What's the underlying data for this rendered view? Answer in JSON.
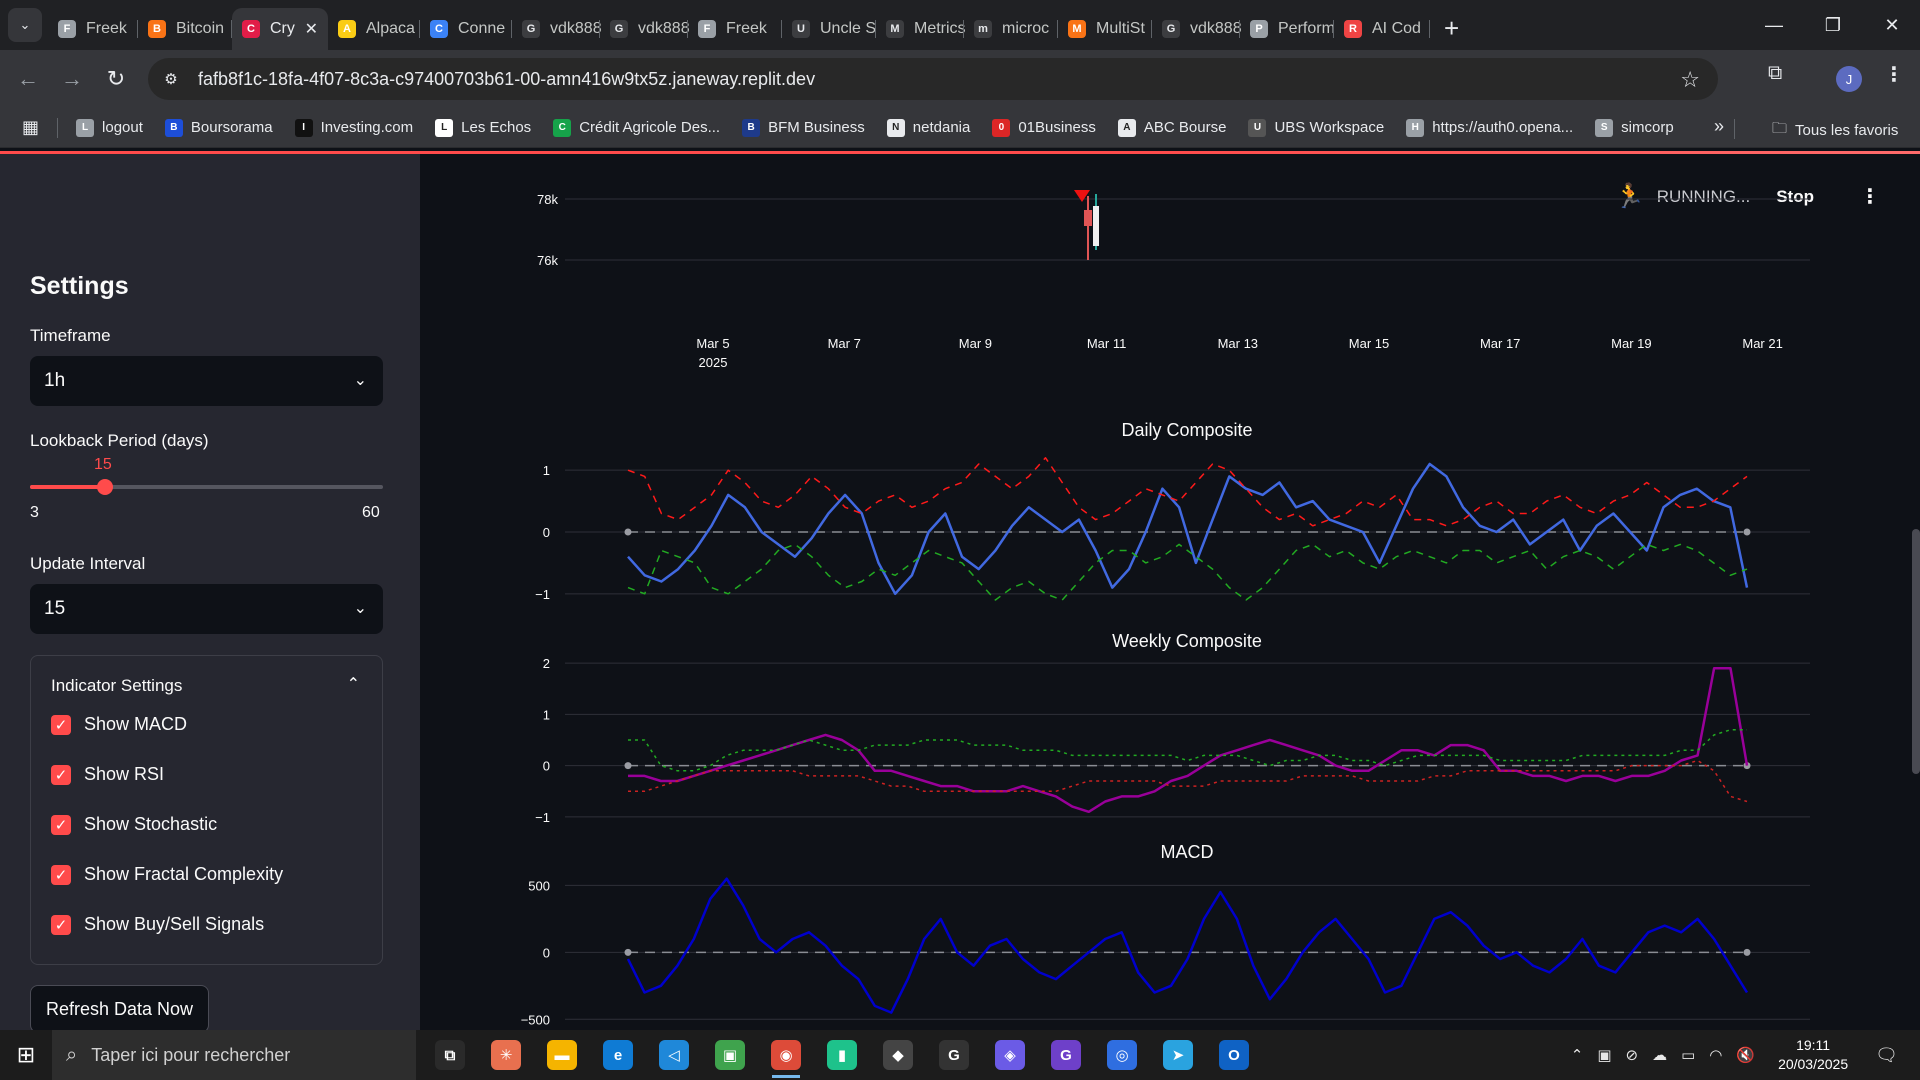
{
  "browser": {
    "tabs": [
      {
        "label": "Freek",
        "icon": "#9aa0a6",
        "glyph": "F"
      },
      {
        "label": "Bitcoin",
        "icon": "#f97316",
        "glyph": "B"
      },
      {
        "label": "Cry",
        "icon": "#e11d48",
        "glyph": "C",
        "active": true
      },
      {
        "label": "Alpaca",
        "icon": "#facc15",
        "glyph": "A"
      },
      {
        "label": "Conne",
        "icon": "#3b82f6",
        "glyph": "C"
      },
      {
        "label": "vdk888",
        "icon": "#e8eaed",
        "glyph": "G"
      },
      {
        "label": "vdk888",
        "icon": "#e8eaed",
        "glyph": "G"
      },
      {
        "label": "Freek",
        "icon": "#9aa0a6",
        "glyph": "F"
      },
      {
        "label": "Uncle S",
        "icon": "#e8eaed",
        "glyph": "U"
      },
      {
        "label": "Metrics",
        "icon": "#e8eaed",
        "glyph": "M"
      },
      {
        "label": "microc",
        "icon": "#e8eaed",
        "glyph": "m"
      },
      {
        "label": "MultiSt",
        "icon": "#f97316",
        "glyph": "M"
      },
      {
        "label": "vdk888",
        "icon": "#e8eaed",
        "glyph": "G"
      },
      {
        "label": "Perform",
        "icon": "#9aa0a6",
        "glyph": "P"
      },
      {
        "label": "AI Cod",
        "icon": "#ef4444",
        "glyph": "R"
      }
    ],
    "url": "fafb8f1c-18fa-4f07-8c3a-c97400703b61-00-amn416w9tx5z.janeway.replit.dev",
    "profile_initial": "J",
    "bookmarks": [
      {
        "label": "logout",
        "color": "#9aa0a6"
      },
      {
        "label": "Boursorama",
        "color": "#1d4ed8"
      },
      {
        "label": "Investing.com",
        "color": "#111111"
      },
      {
        "label": "Les Echos",
        "color": "#ffffff"
      },
      {
        "label": "Crédit Agricole Des...",
        "color": "#16a34a"
      },
      {
        "label": "BFM Business",
        "color": "#1e3a8a"
      },
      {
        "label": "netdania",
        "color": "#e8eaed"
      },
      {
        "label": "01Business",
        "color": "#dc2626"
      },
      {
        "label": "ABC Bourse",
        "color": "#e8eaed"
      },
      {
        "label": "UBS Workspace",
        "color": "#555555"
      },
      {
        "label": "https://auth0.opena...",
        "color": "#9aa0a6"
      },
      {
        "label": "simcorp",
        "color": "#9aa0a6"
      }
    ],
    "all_bookmarks": "Tous les favoris"
  },
  "sidebar": {
    "title": "Settings",
    "timeframe_label": "Timeframe",
    "timeframe_value": "1h",
    "lookback_label": "Lookback Period (days)",
    "lookback_value": "15",
    "lookback_min": "3",
    "lookback_max": "60",
    "interval_label": "Update Interval",
    "interval_value": "15",
    "indicator_title": "Indicator Settings",
    "checkboxes": [
      {
        "label": "Show MACD"
      },
      {
        "label": "Show RSI"
      },
      {
        "label": "Show Stochastic"
      },
      {
        "label": "Show Fractal Complexity"
      },
      {
        "label": "Show Buy/Sell Signals"
      }
    ],
    "refresh_label": "Refresh Data Now"
  },
  "status": {
    "text": "RUNNING...",
    "stop": "Stop"
  },
  "charts": {
    "price": {
      "y_ticks": [
        "78k",
        "76k"
      ],
      "x_ticks": [
        "Mar 5",
        "Mar 7",
        "Mar 9",
        "Mar 11",
        "Mar 13",
        "Mar 15",
        "Mar 17",
        "Mar 19",
        "Mar 21"
      ],
      "x_year": "2025"
    },
    "daily": {
      "title": "Daily Composite",
      "y_ticks": [
        "1",
        "0",
        "−1"
      ]
    },
    "weekly": {
      "title": "Weekly Composite",
      "y_ticks": [
        "2",
        "1",
        "0",
        "−1"
      ]
    },
    "macd": {
      "title": "MACD",
      "y_ticks": [
        "500",
        "0",
        "−500"
      ]
    }
  },
  "chart_data": [
    {
      "type": "line",
      "title": "Daily Composite",
      "ylim": [
        -1.1,
        1.1
      ],
      "series": [
        {
          "color": "#4169e1",
          "values": [
            -0.4,
            -0.7,
            -0.8,
            -0.6,
            -0.3,
            0.1,
            0.6,
            0.4,
            0.0,
            -0.2,
            -0.4,
            -0.1,
            0.3,
            0.6,
            0.3,
            -0.5,
            -1.0,
            -0.7,
            0.0,
            0.3,
            -0.4,
            -0.6,
            -0.3,
            0.1,
            0.4,
            0.2,
            0.0,
            0.2,
            -0.3,
            -0.9,
            -0.6,
            0.0,
            0.7,
            0.4,
            -0.5,
            0.2,
            0.9,
            0.7,
            0.6,
            0.8,
            0.4,
            0.5,
            0.2,
            0.1,
            0.0,
            -0.5,
            0.1,
            0.7,
            1.1,
            0.9,
            0.4,
            0.1,
            0.0,
            0.2,
            -0.2,
            0.0,
            0.2,
            -0.3,
            0.1,
            0.3,
            0.0,
            -0.3,
            0.4,
            0.6,
            0.7,
            0.5,
            0.4,
            -0.9
          ]
        },
        {
          "color": "#ff1a1a",
          "dash": "7,6",
          "values": [
            1.0,
            0.9,
            0.3,
            0.2,
            0.4,
            0.6,
            1.0,
            0.8,
            0.5,
            0.4,
            0.6,
            0.9,
            0.7,
            0.4,
            0.3,
            0.5,
            0.6,
            0.4,
            0.5,
            0.7,
            0.8,
            1.1,
            0.9,
            0.7,
            0.9,
            1.2,
            0.8,
            0.4,
            0.2,
            0.3,
            0.5,
            0.7,
            0.6,
            0.5,
            0.8,
            1.1,
            1.0,
            0.7,
            0.4,
            0.2,
            0.3,
            0.1,
            0.2,
            0.3,
            0.5,
            0.4,
            0.6,
            0.2,
            0.2,
            0.1,
            0.2,
            0.4,
            0.5,
            0.3,
            0.3,
            0.5,
            0.6,
            0.4,
            0.3,
            0.5,
            0.6,
            0.8,
            0.6,
            0.4,
            0.4,
            0.5,
            0.7,
            0.9
          ]
        },
        {
          "color": "#22aa22",
          "dash": "7,6",
          "values": [
            -0.9,
            -1.0,
            -0.3,
            -0.4,
            -0.5,
            -0.9,
            -1.0,
            -0.8,
            -0.6,
            -0.3,
            -0.2,
            -0.4,
            -0.7,
            -0.9,
            -0.8,
            -0.6,
            -0.7,
            -0.5,
            -0.3,
            -0.4,
            -0.5,
            -0.8,
            -1.1,
            -0.9,
            -0.8,
            -1.0,
            -1.1,
            -0.8,
            -0.5,
            -0.3,
            -0.3,
            -0.5,
            -0.4,
            -0.2,
            -0.4,
            -0.6,
            -0.9,
            -1.1,
            -0.9,
            -0.6,
            -0.3,
            -0.2,
            -0.4,
            -0.3,
            -0.5,
            -0.6,
            -0.4,
            -0.3,
            -0.4,
            -0.5,
            -0.3,
            -0.3,
            -0.5,
            -0.4,
            -0.3,
            -0.6,
            -0.4,
            -0.3,
            -0.4,
            -0.6,
            -0.4,
            -0.2,
            -0.3,
            -0.2,
            -0.3,
            -0.5,
            -0.7,
            -0.6
          ]
        }
      ]
    },
    {
      "type": "line",
      "title": "Weekly Composite",
      "ylim": [
        -1.1,
        2.1
      ],
      "series": [
        {
          "color": "#990099",
          "values": [
            -0.2,
            -0.2,
            -0.3,
            -0.3,
            -0.2,
            -0.1,
            0.0,
            0.1,
            0.2,
            0.3,
            0.4,
            0.5,
            0.6,
            0.5,
            0.3,
            -0.1,
            -0.1,
            -0.2,
            -0.3,
            -0.4,
            -0.4,
            -0.5,
            -0.5,
            -0.5,
            -0.4,
            -0.5,
            -0.6,
            -0.8,
            -0.9,
            -0.7,
            -0.6,
            -0.6,
            -0.5,
            -0.3,
            -0.2,
            0.0,
            0.2,
            0.3,
            0.4,
            0.5,
            0.4,
            0.3,
            0.2,
            0.0,
            -0.1,
            -0.1,
            0.1,
            0.3,
            0.3,
            0.2,
            0.4,
            0.4,
            0.3,
            -0.1,
            -0.1,
            -0.2,
            -0.2,
            -0.3,
            -0.2,
            -0.2,
            -0.3,
            -0.2,
            -0.2,
            -0.1,
            0.1,
            0.2,
            1.9,
            1.9,
            0.0
          ]
        },
        {
          "color": "#22aa22",
          "dash": "3,4",
          "values": [
            0.5,
            0.5,
            0.0,
            -0.1,
            -0.1,
            0.0,
            0.2,
            0.3,
            0.3,
            0.3,
            0.4,
            0.5,
            0.4,
            0.3,
            0.3,
            0.4,
            0.4,
            0.4,
            0.5,
            0.5,
            0.5,
            0.4,
            0.4,
            0.4,
            0.3,
            0.3,
            0.3,
            0.2,
            0.2,
            0.2,
            0.2,
            0.2,
            0.2,
            0.2,
            0.1,
            0.2,
            0.2,
            0.2,
            0.1,
            0.0,
            0.1,
            0.1,
            0.2,
            0.2,
            0.1,
            0.1,
            0.0,
            0.1,
            0.2,
            0.2,
            0.2,
            0.2,
            0.2,
            0.1,
            0.1,
            0.1,
            0.1,
            0.1,
            0.2,
            0.2,
            0.2,
            0.2,
            0.2,
            0.2,
            0.3,
            0.3,
            0.6,
            0.7,
            0.7
          ]
        },
        {
          "color": "#cc2222",
          "dash": "3,4",
          "values": [
            -0.5,
            -0.5,
            -0.4,
            -0.3,
            -0.2,
            -0.1,
            -0.1,
            -0.1,
            -0.1,
            -0.1,
            -0.1,
            -0.2,
            -0.2,
            -0.2,
            -0.2,
            -0.3,
            -0.4,
            -0.4,
            -0.5,
            -0.5,
            -0.5,
            -0.5,
            -0.5,
            -0.5,
            -0.5,
            -0.5,
            -0.5,
            -0.4,
            -0.3,
            -0.3,
            -0.3,
            -0.3,
            -0.3,
            -0.4,
            -0.4,
            -0.4,
            -0.3,
            -0.3,
            -0.3,
            -0.3,
            -0.3,
            -0.2,
            -0.2,
            -0.2,
            -0.2,
            -0.3,
            -0.3,
            -0.3,
            -0.3,
            -0.2,
            -0.2,
            -0.1,
            -0.1,
            -0.1,
            -0.1,
            -0.1,
            -0.1,
            -0.1,
            -0.1,
            -0.1,
            -0.1,
            0.0,
            0.0,
            0.0,
            0.0,
            0.1,
            -0.1,
            -0.6,
            -0.7
          ]
        }
      ]
    },
    {
      "type": "line",
      "title": "MACD",
      "ylim": [
        -550,
        600
      ],
      "series": [
        {
          "color": "#0000cc",
          "values": [
            -50,
            -300,
            -250,
            -100,
            100,
            400,
            550,
            350,
            100,
            0,
            100,
            150,
            50,
            -100,
            -200,
            -400,
            -450,
            -200,
            100,
            250,
            0,
            -100,
            50,
            100,
            -50,
            -150,
            -200,
            -100,
            0,
            100,
            150,
            -150,
            -300,
            -250,
            -50,
            250,
            450,
            250,
            -100,
            -350,
            -200,
            0,
            150,
            250,
            100,
            -50,
            -300,
            -250,
            0,
            250,
            300,
            200,
            50,
            -50,
            0,
            -100,
            -150,
            -50,
            100,
            -100,
            -150,
            0,
            150,
            200,
            150,
            250,
            100,
            -100,
            -300
          ]
        }
      ]
    }
  ]
}
